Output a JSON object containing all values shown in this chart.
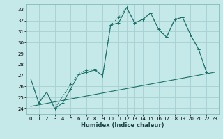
{
  "xlabel": "Humidex (Indice chaleur)",
  "xlim": [
    -0.5,
    23.5
  ],
  "ylim": [
    23.5,
    33.5
  ],
  "yticks": [
    24,
    25,
    26,
    27,
    28,
    29,
    30,
    31,
    32,
    33
  ],
  "xticks": [
    0,
    1,
    2,
    3,
    4,
    5,
    6,
    7,
    8,
    9,
    10,
    11,
    12,
    13,
    14,
    15,
    16,
    17,
    18,
    19,
    20,
    21,
    22,
    23
  ],
  "bg_color": "#c5e8e8",
  "grid_color": "#a8d0d0",
  "line_color": "#1a7068",
  "line1_x": [
    0,
    1,
    2,
    3,
    4,
    5,
    6,
    7,
    8,
    9,
    10,
    11,
    12,
    13,
    14,
    15,
    16,
    17,
    18,
    19,
    20,
    21,
    22
  ],
  "line1_y": [
    26.7,
    24.5,
    25.5,
    24.0,
    24.5,
    25.8,
    27.1,
    27.3,
    27.5,
    27.0,
    31.6,
    31.8,
    33.2,
    31.8,
    32.1,
    32.7,
    31.2,
    30.5,
    32.1,
    32.3,
    30.7,
    29.4,
    27.3
  ],
  "line2_x": [
    0,
    1,
    2,
    3,
    5,
    6,
    7,
    8,
    9,
    10,
    11,
    12,
    13,
    14,
    15,
    16,
    17,
    18,
    19,
    20,
    21,
    22
  ],
  "line2_y": [
    26.7,
    24.5,
    25.5,
    24.0,
    26.2,
    27.2,
    27.5,
    27.6,
    27.0,
    31.6,
    32.3,
    33.2,
    31.8,
    32.1,
    32.7,
    31.2,
    30.5,
    32.1,
    32.3,
    30.7,
    29.4,
    27.3
  ],
  "line3_x": [
    0,
    23
  ],
  "line3_y": [
    24.2,
    27.3
  ]
}
